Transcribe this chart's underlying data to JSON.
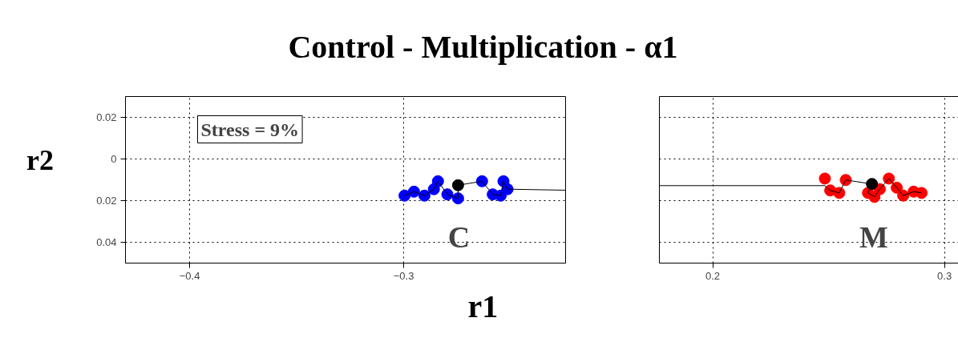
{
  "chart_data": [
    {
      "type": "scatter",
      "title": "Control - Multiplication - α1",
      "xlabel": "r1",
      "ylabel": "r2",
      "xlim": [
        -0.43,
        -0.224
      ],
      "xticks": [
        -0.4,
        -0.3
      ],
      "ylim": [
        -0.05,
        0.03
      ],
      "yticks": [
        {
          "value": 0.02,
          "label": "0.02"
        },
        0,
        {
          "value": -0.02,
          "label": "0.02"
        },
        {
          "value": -0.04,
          "label": "0.04"
        }
      ],
      "grid": true,
      "series": [
        {
          "marker": "circle",
          "color": "#0000ff",
          "x": [
            -0.2996,
            -0.2952,
            -0.2903,
            -0.2859,
            -0.284,
            -0.2796,
            -0.2746,
            -0.2634,
            -0.2584,
            -0.2547,
            -0.2534,
            -0.2515
          ],
          "values": [
            -0.0176,
            -0.0157,
            -0.0176,
            -0.0145,
            -0.0107,
            -0.017,
            -0.0189,
            -0.0107,
            -0.017,
            -0.0176,
            -0.0107,
            -0.0145
          ]
        },
        {
          "type": "line",
          "marker": "none",
          "color": "#000000",
          "x": [
            -0.2996,
            -0.2952,
            -0.2903,
            -0.2859,
            -0.284,
            -0.2796,
            -0.2746,
            -0.2746,
            -0.2634,
            -0.2584,
            -0.2547,
            -0.2534,
            -0.2515,
            -0.224
          ],
          "values": [
            -0.0176,
            -0.0157,
            -0.0176,
            -0.0145,
            -0.0107,
            -0.017,
            -0.0189,
            -0.0126,
            -0.0107,
            -0.017,
            -0.0176,
            -0.0107,
            -0.0145,
            -0.015
          ]
        },
        {
          "marker": "circle",
          "color": "#000000",
          "x": [
            -0.2746
          ],
          "values": [
            -0.0126
          ]
        }
      ],
      "annotations": [
        "Stress = 9%",
        "C"
      ]
    },
    {
      "type": "scatter",
      "xlim": [
        0.177,
        0.306
      ],
      "xticks": [
        0.2,
        0.3
      ],
      "ylim": [
        -0.05,
        0.03
      ],
      "yticks": [
        0.02,
        0,
        -0.02,
        -0.04
      ],
      "grid": true,
      "tick_labels": "x",
      "series": [
        {
          "marker": "circle",
          "color": "#ff0000",
          "x": [
            0.2484,
            0.2507,
            0.2546,
            0.2574,
            0.267,
            0.2698,
            0.2721,
            0.276,
            0.2794,
            0.2822,
            0.2867,
            0.2901
          ],
          "values": [
            -0.0094,
            -0.0151,
            -0.0163,
            -0.0101,
            -0.0163,
            -0.0182,
            -0.0145,
            -0.0094,
            -0.0138,
            -0.0176,
            -0.0157,
            -0.0163
          ]
        },
        {
          "type": "line",
          "marker": "none",
          "color": "#000000",
          "x": [
            0.177,
            0.2484,
            0.2507,
            0.2546,
            0.2574,
            0.2687,
            0.267,
            0.2698,
            0.2721,
            0.276,
            0.2794,
            0.2822,
            0.2867,
            0.2901
          ],
          "values": [
            -0.0128,
            -0.0128,
            -0.0151,
            -0.0163,
            -0.0101,
            -0.012,
            -0.0163,
            -0.0182,
            -0.0145,
            -0.0094,
            -0.0138,
            -0.0176,
            -0.0157,
            -0.0163
          ]
        },
        {
          "marker": "circle",
          "color": "#000000",
          "x": [
            0.2687
          ],
          "values": [
            -0.012
          ]
        }
      ],
      "annotations": [
        "M"
      ]
    }
  ]
}
